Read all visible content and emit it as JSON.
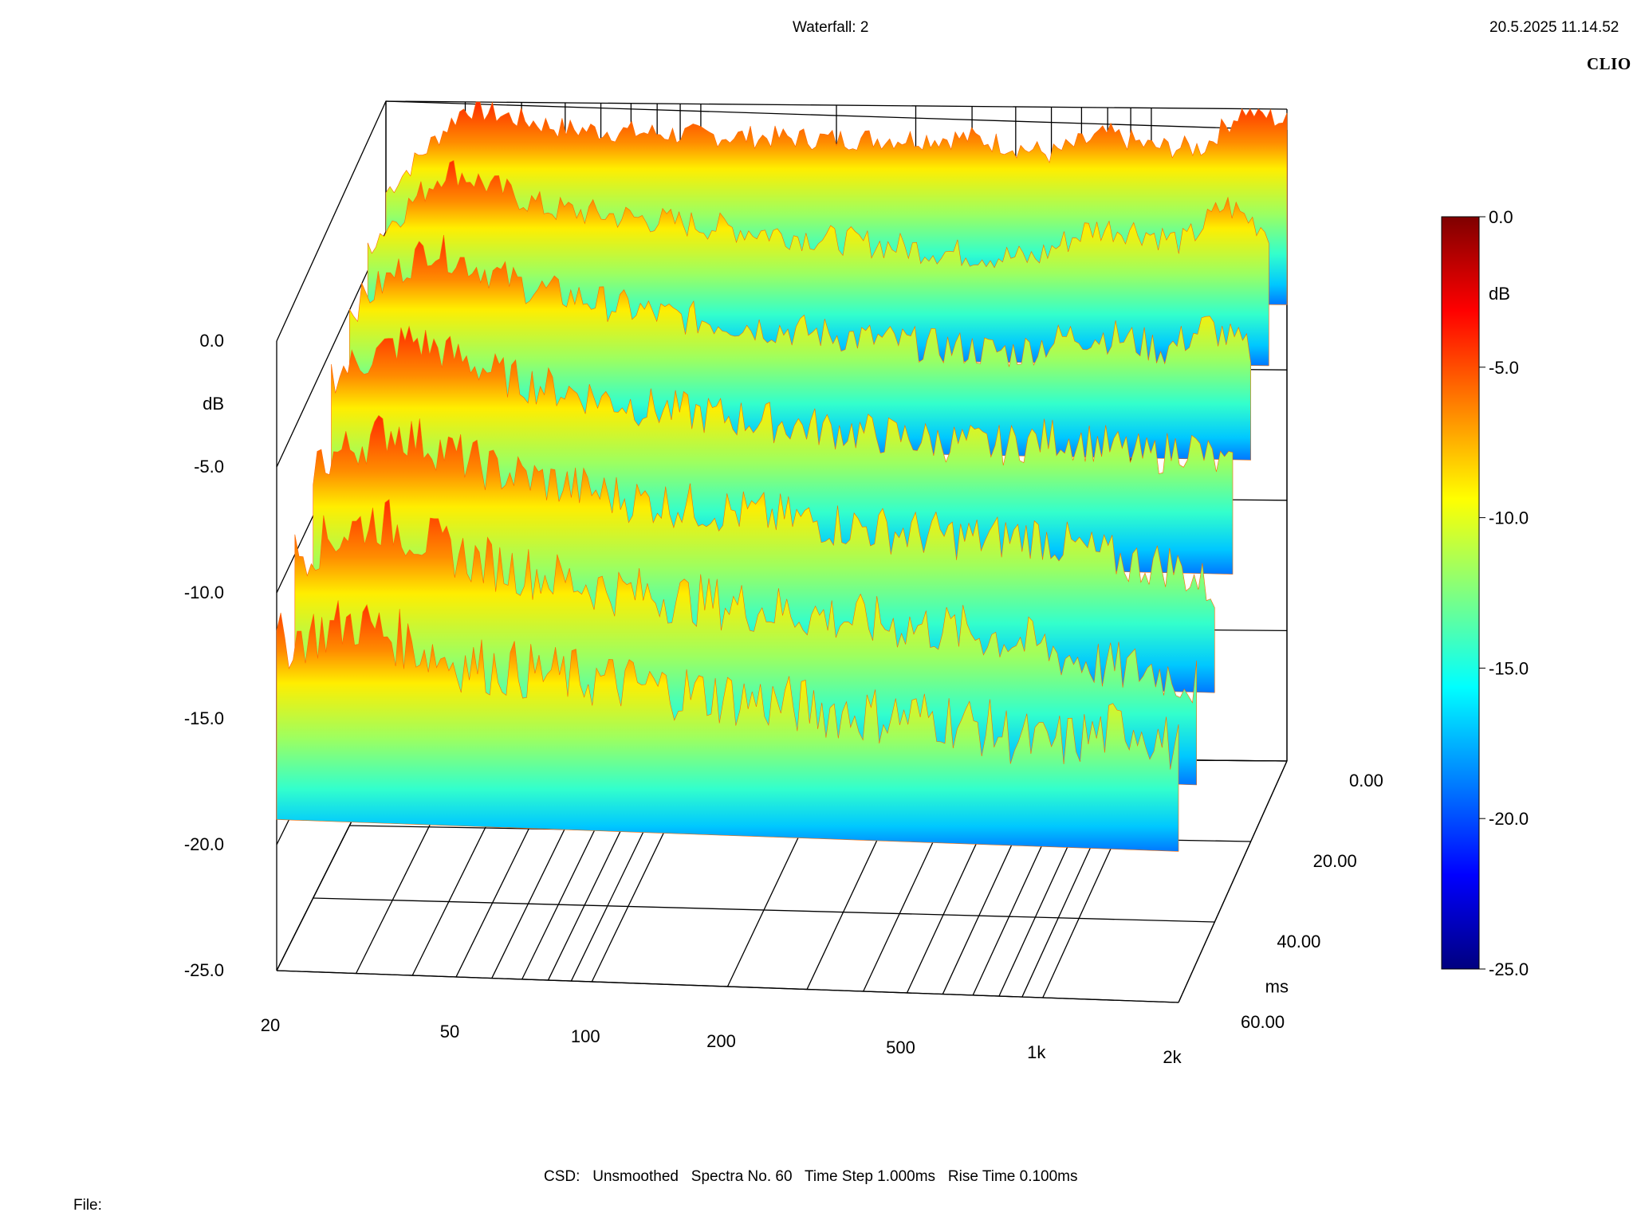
{
  "header": {
    "title": "Waterfall: 2",
    "timestamp": "20.5.2025 11.14.52",
    "brand": "CLIO"
  },
  "footer": {
    "settings": "CSD:   Unsmoothed   Spectra No. 60   Time Step 1.000ms   Rise Time 0.100ms",
    "file_label": "File:"
  },
  "colors": {
    "scale": [
      "#00007f",
      "#0000ff",
      "#0080ff",
      "#00ffff",
      "#80ff80",
      "#ffff00",
      "#ff8000",
      "#ff0000",
      "#7f0000"
    ],
    "grid": "#000000"
  },
  "chart_data": {
    "type": "waterfall",
    "title": "Waterfall: 2",
    "x_axis": {
      "label": "",
      "scale": "log",
      "range": [
        20,
        2000
      ],
      "ticks": [
        {
          "value": 20,
          "label": "20"
        },
        {
          "value": 50,
          "label": "50"
        },
        {
          "value": 100,
          "label": "100"
        },
        {
          "value": 200,
          "label": "200"
        },
        {
          "value": 500,
          "label": "500"
        },
        {
          "value": 1000,
          "label": "1k"
        },
        {
          "value": 2000,
          "label": "2k"
        }
      ]
    },
    "y_axis": {
      "unit": "dB",
      "range": [
        -25,
        0
      ],
      "ticks": [
        {
          "value": 0,
          "label": "0.0"
        },
        {
          "value": -5,
          "label": "-5.0"
        },
        {
          "value": -10,
          "label": "-10.0"
        },
        {
          "value": -15,
          "label": "-15.0"
        },
        {
          "value": -20,
          "label": "-20.0"
        },
        {
          "value": -25,
          "label": "-25.0"
        }
      ]
    },
    "z_axis": {
      "unit": "ms",
      "range": [
        0,
        60
      ],
      "ticks": [
        {
          "value": 0,
          "label": "0.00"
        },
        {
          "value": 20,
          "label": "20.00"
        },
        {
          "value": 40,
          "label": "40.00"
        },
        {
          "value": 60,
          "label": "60.00"
        }
      ]
    },
    "colorbar": {
      "unit": "dB",
      "range": [
        -25,
        0
      ],
      "ticks": [
        {
          "value": 0,
          "label": "0.0"
        },
        {
          "value": -5,
          "label": "-5.0"
        },
        {
          "value": -10,
          "label": "-10.0"
        },
        {
          "value": -15,
          "label": "-15.0"
        },
        {
          "value": -20,
          "label": "-20.0"
        },
        {
          "value": -25,
          "label": "-25.0"
        }
      ]
    },
    "series": [
      {
        "time_ms": 0,
        "frequencies": [
          20,
          30,
          50,
          100,
          200,
          400,
          600,
          800,
          1000,
          1300,
          1600,
          2000
        ],
        "levels_db": [
          -3.5,
          -0.2,
          -1.0,
          -1.2,
          -1.3,
          -1.2,
          -1.8,
          -1.0,
          -1.5,
          -1.5,
          0.0,
          -0.5
        ]
      },
      {
        "time_ms": 10,
        "frequencies": [
          20,
          30,
          50,
          100,
          200,
          400,
          600,
          800,
          1000,
          1300,
          1600,
          2000
        ],
        "levels_db": [
          -4.0,
          -1.0,
          -2.5,
          -3.0,
          -3.5,
          -4.0,
          -4.2,
          -3.0,
          -3.0,
          -3.5,
          -2.0,
          -3.0
        ]
      },
      {
        "time_ms": 20,
        "frequencies": [
          20,
          30,
          50,
          100,
          200,
          400,
          600,
          800,
          1000,
          1300,
          1600,
          2000
        ],
        "levels_db": [
          -5.0,
          -2.5,
          -4.0,
          -5.0,
          -5.5,
          -6.0,
          -6.2,
          -5.5,
          -5.5,
          -6.0,
          -5.0,
          -6.0
        ]
      },
      {
        "time_ms": 30,
        "frequencies": [
          20,
          30,
          50,
          100,
          200,
          400,
          600,
          800,
          1000,
          1300,
          1600,
          2000
        ],
        "levels_db": [
          -6.0,
          -4.5,
          -6.0,
          -7.0,
          -7.5,
          -8.0,
          -8.2,
          -7.8,
          -8.0,
          -8.5,
          -8.0,
          -9.0
        ]
      },
      {
        "time_ms": 40,
        "frequencies": [
          20,
          30,
          50,
          100,
          200,
          400,
          600,
          800,
          1000,
          1300,
          1600,
          2000
        ],
        "levels_db": [
          -8.0,
          -6.5,
          -8.0,
          -9.0,
          -9.5,
          -10.0,
          -10.2,
          -10.0,
          -10.5,
          -11.0,
          -11.0,
          -12.0
        ]
      },
      {
        "time_ms": 50,
        "frequencies": [
          20,
          30,
          50,
          100,
          200,
          400,
          600,
          800,
          1000,
          1300,
          1600,
          2000
        ],
        "levels_db": [
          -10.0,
          -8.5,
          -10.0,
          -11.0,
          -11.5,
          -12.0,
          -12.2,
          -12.5,
          -13.0,
          -13.5,
          -13.5,
          -14.0
        ]
      },
      {
        "time_ms": 60,
        "frequencies": [
          20,
          30,
          50,
          100,
          200,
          400,
          600,
          800,
          1000,
          1300,
          1600,
          2000
        ],
        "levels_db": [
          -12.0,
          -11.0,
          -12.5,
          -13.0,
          -13.5,
          -14.0,
          -14.0,
          -14.5,
          -15.0,
          -14.5,
          -14.0,
          -15.0
        ]
      }
    ],
    "grid": true,
    "legend": "colorbar-right"
  }
}
